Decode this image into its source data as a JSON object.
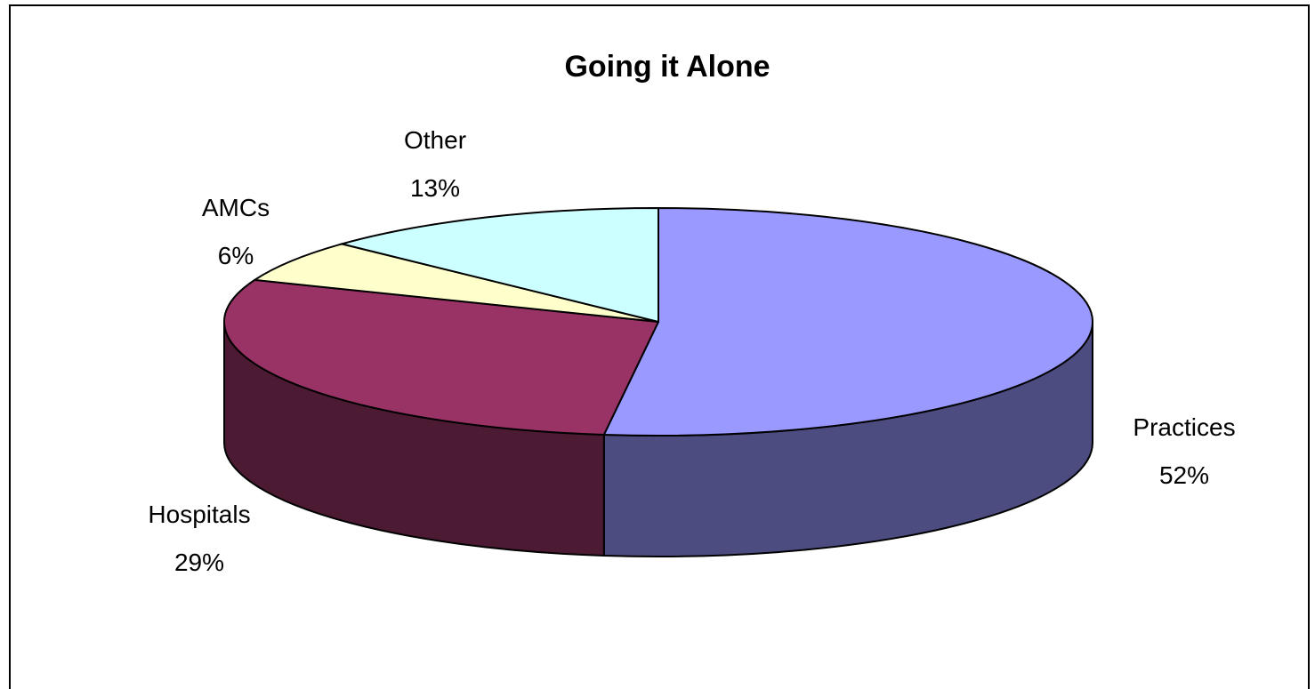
{
  "chart_data": {
    "type": "pie",
    "title": "Going it Alone",
    "style": "3d",
    "slices": [
      {
        "label": "Practices",
        "value": 52,
        "value_label": "52%",
        "color": "#9999FF",
        "side_color": "#4C4C80"
      },
      {
        "label": "Hospitals",
        "value": 29,
        "value_label": "29%",
        "color": "#993366",
        "side_color": "#4D1A33"
      },
      {
        "label": "AMCs",
        "value": 6,
        "value_label": "6%",
        "color": "#FFFFCC",
        "side_color": "#808066"
      },
      {
        "label": "Other",
        "value": 13,
        "value_label": "13%",
        "color": "#CCFFFF",
        "side_color": "#668080"
      }
    ],
    "legend": "none"
  }
}
